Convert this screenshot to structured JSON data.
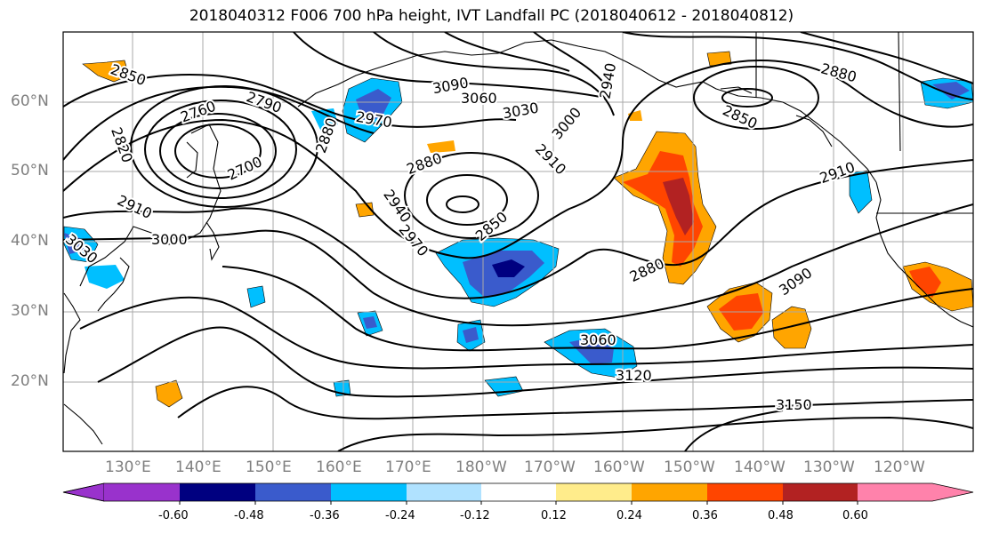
{
  "title": "2018040312 F006 700 hPa height, IVT Landfall PC (2018040612 - 2018040812)",
  "lat_labels": [
    "60°N",
    "50°N",
    "40°N",
    "30°N",
    "20°N"
  ],
  "lon_labels": [
    "130°E",
    "140°E",
    "150°E",
    "160°E",
    "170°E",
    "180°W",
    "170°W",
    "160°W",
    "150°W",
    "140°W",
    "130°W",
    "120°W"
  ],
  "contour_labels": [
    "2850",
    "2760",
    "2790",
    "2820",
    "2700",
    "2910",
    "3000",
    "3030",
    "2880",
    "2970",
    "3090",
    "3060",
    "3030",
    "3000",
    "2940",
    "2910",
    "2850",
    "2940",
    "2970",
    "2880",
    "3090",
    "3060",
    "3120",
    "3150",
    "2880",
    "2850",
    "2910"
  ],
  "colorbar": {
    "ticks": [
      "-0.60",
      "-0.48",
      "-0.36",
      "-0.24",
      "-0.12",
      "0.12",
      "0.24",
      "0.36",
      "0.48",
      "0.60"
    ],
    "colors": [
      "#9932cc",
      "#000080",
      "#3a5bcc",
      "#00bfff",
      "#b0e2ff",
      "#ffffff",
      "#ffec8b",
      "#ffa500",
      "#ff4500",
      "#b22222",
      "#ff82ab"
    ]
  }
}
